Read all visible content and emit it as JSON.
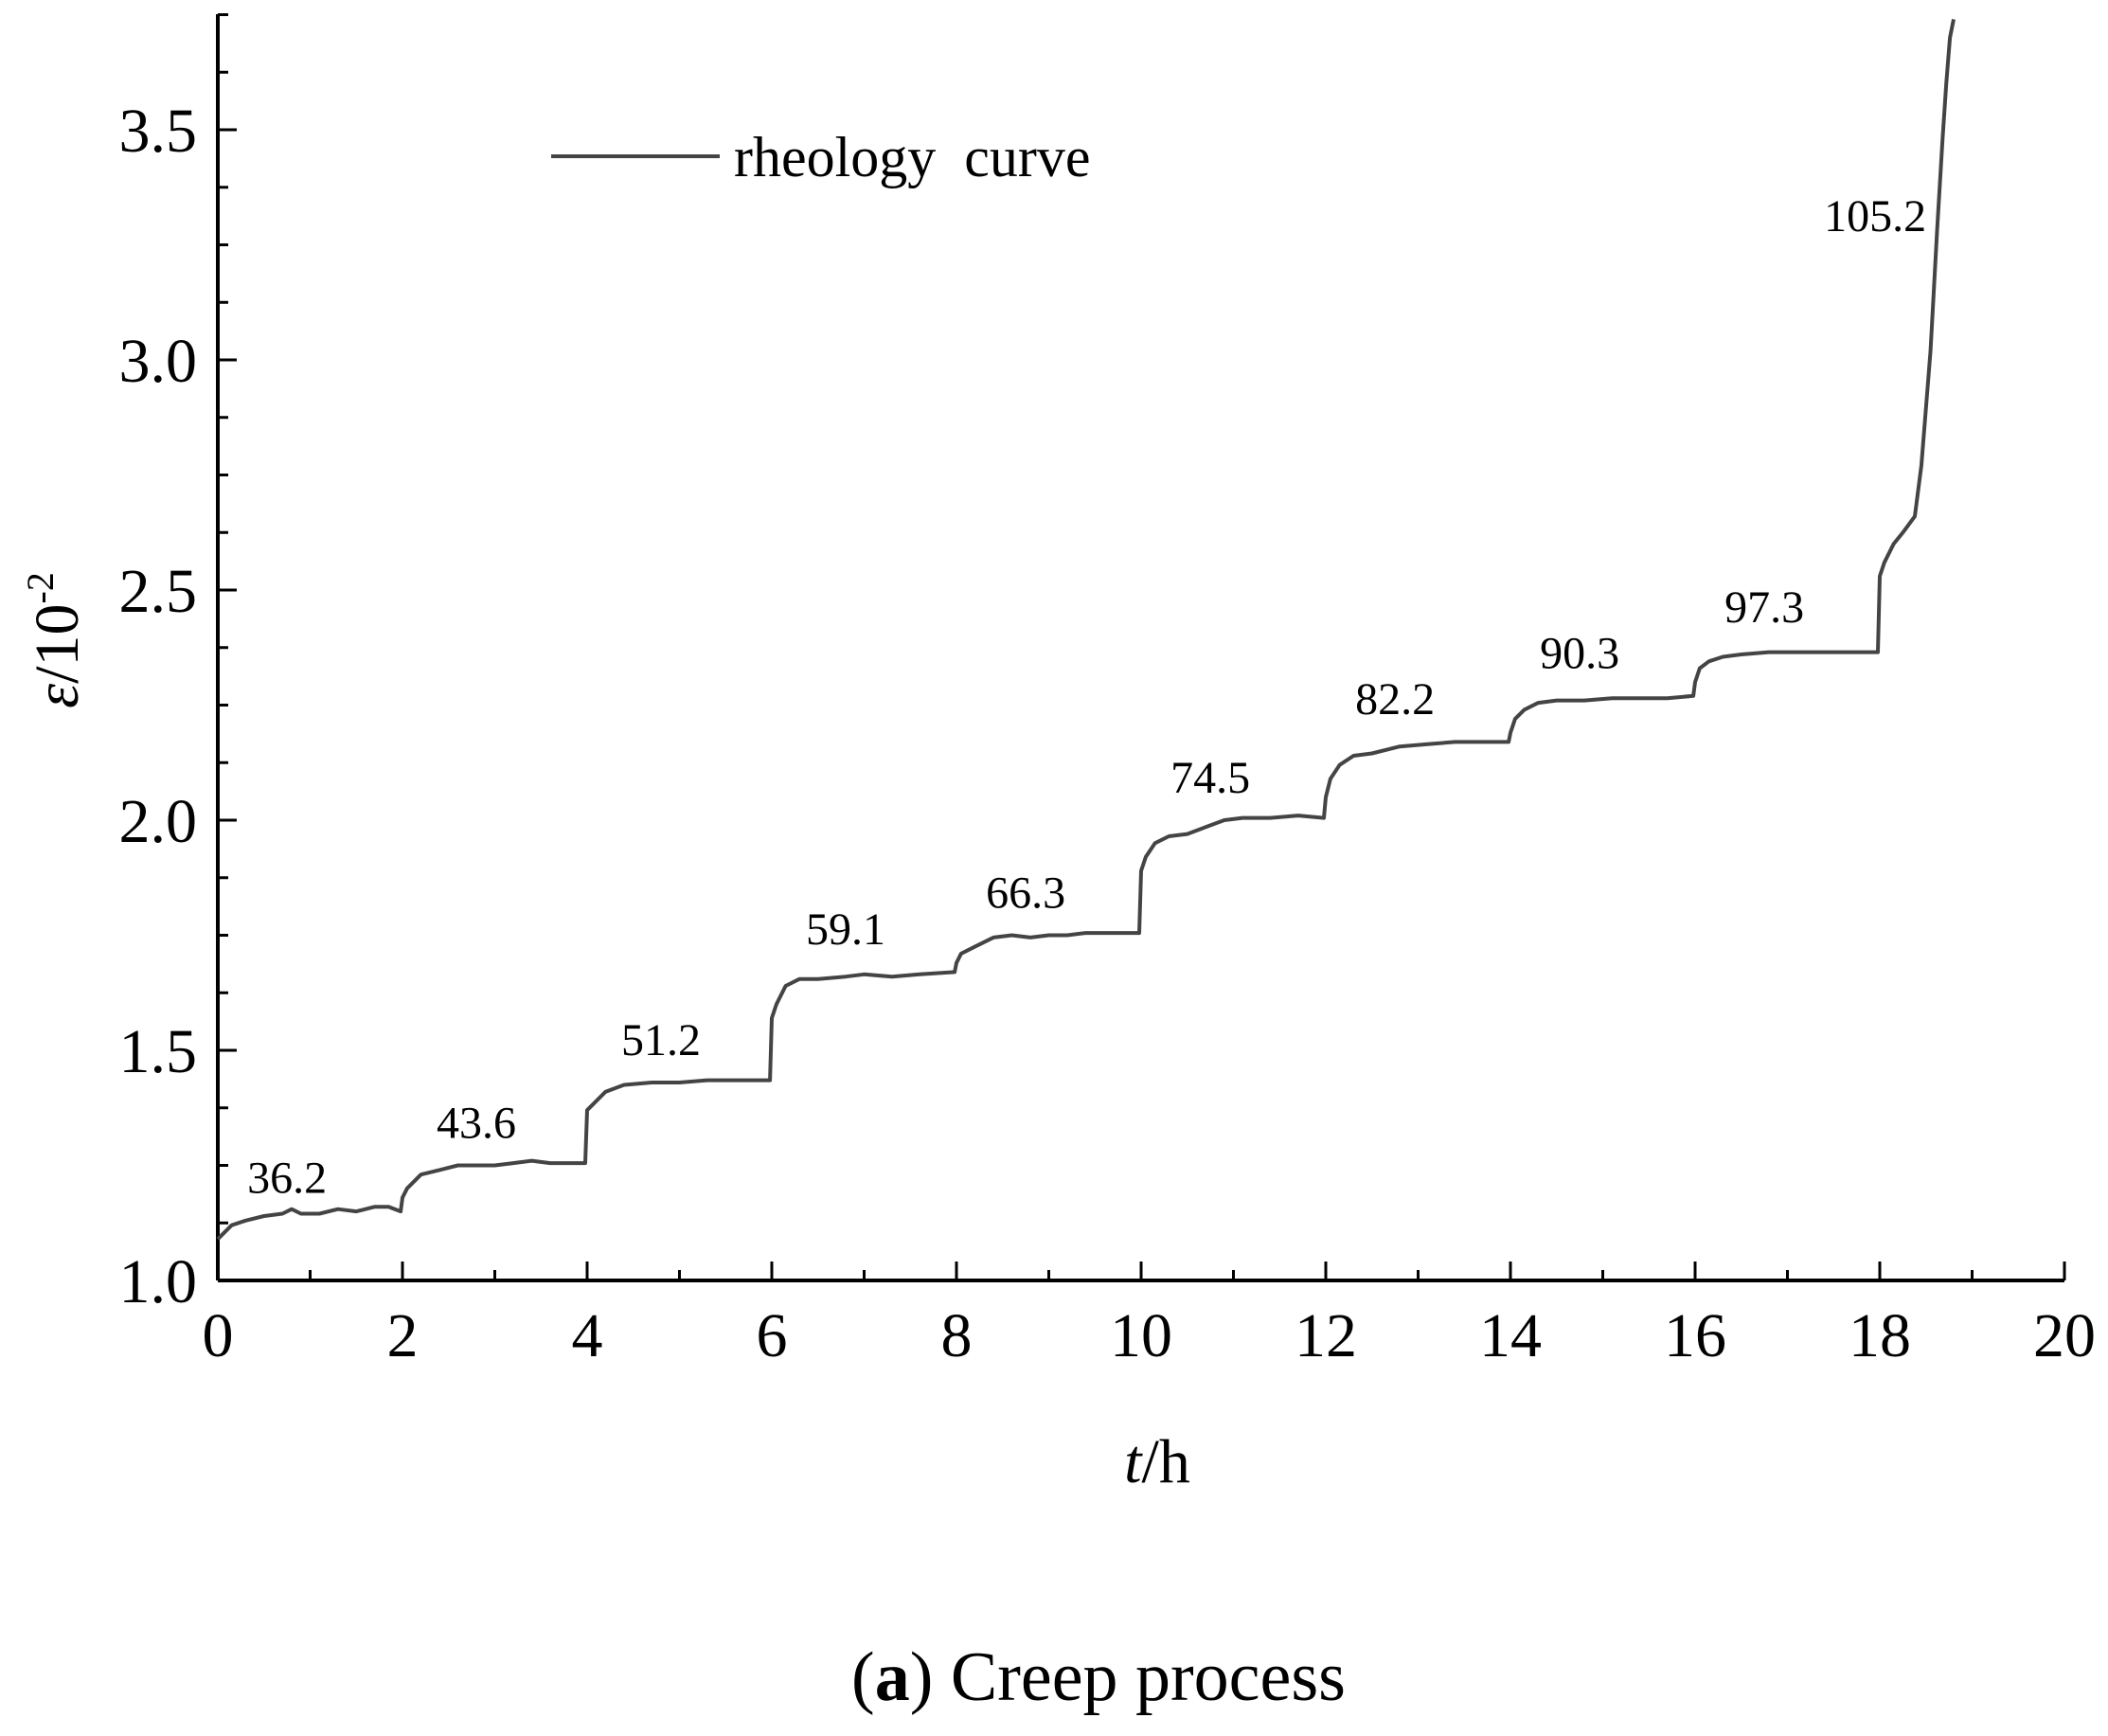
{
  "chart_data": {
    "type": "line",
    "title": "",
    "xlabel": {
      "italic": "t",
      "rest": "/h"
    },
    "ylabel": {
      "italic": "ε",
      "rest": "/10",
      "sup": "-2"
    },
    "xlim": [
      0,
      20
    ],
    "ylim": [
      1.0,
      3.75
    ],
    "xticks": [
      0,
      2,
      4,
      6,
      8,
      10,
      12,
      14,
      16,
      18,
      20
    ],
    "xtick_labels": [
      "0",
      "2",
      "4",
      "6",
      "8",
      "10",
      "12",
      "14",
      "16",
      "18",
      "20"
    ],
    "yticks": [
      1.0,
      1.5,
      2.0,
      2.5,
      3.0,
      3.5
    ],
    "ytick_labels": [
      "1.0",
      "1.5",
      "2.0",
      "2.5",
      "3.0",
      "3.5"
    ],
    "grid": false,
    "legend_position": "top-left",
    "series": [
      {
        "name": "rheology  curve",
        "color": "#444444",
        "x": [
          0,
          0.05,
          0.15,
          0.3,
          0.5,
          0.7,
          0.8,
          0.9,
          1.1,
          1.3,
          1.5,
          1.7,
          1.85,
          1.98,
          2.0,
          2.05,
          2.2,
          2.4,
          2.6,
          3.0,
          3.2,
          3.4,
          3.6,
          3.8,
          3.98,
          4.0,
          4.05,
          4.2,
          4.4,
          4.7,
          5.0,
          5.3,
          5.6,
          5.98,
          6.0,
          6.05,
          6.15,
          6.3,
          6.5,
          6.8,
          7.0,
          7.3,
          7.6,
          7.98,
          8.0,
          8.05,
          8.2,
          8.4,
          8.6,
          8.8,
          9.0,
          9.2,
          9.4,
          9.6,
          9.98,
          10.0,
          10.05,
          10.15,
          10.3,
          10.5,
          10.7,
          10.9,
          11.1,
          11.4,
          11.7,
          11.98,
          12.0,
          12.05,
          12.15,
          12.3,
          12.5,
          12.8,
          13.1,
          13.4,
          13.7,
          13.98,
          14.0,
          14.05,
          14.15,
          14.3,
          14.5,
          14.8,
          15.1,
          15.4,
          15.7,
          15.98,
          16.0,
          16.05,
          16.15,
          16.3,
          16.5,
          16.8,
          17.1,
          17.4,
          17.7,
          17.98,
          18.0,
          18.05,
          18.15,
          18.25,
          18.38,
          18.45,
          18.55,
          18.62,
          18.68,
          18.72,
          18.76,
          18.8
        ],
        "values": [
          1.09,
          1.1,
          1.12,
          1.13,
          1.14,
          1.145,
          1.155,
          1.145,
          1.145,
          1.155,
          1.15,
          1.16,
          1.16,
          1.15,
          1.18,
          1.2,
          1.23,
          1.24,
          1.25,
          1.25,
          1.255,
          1.26,
          1.255,
          1.255,
          1.255,
          1.37,
          1.38,
          1.41,
          1.425,
          1.43,
          1.43,
          1.435,
          1.435,
          1.435,
          1.57,
          1.6,
          1.64,
          1.655,
          1.655,
          1.66,
          1.665,
          1.66,
          1.665,
          1.67,
          1.69,
          1.71,
          1.725,
          1.745,
          1.75,
          1.745,
          1.75,
          1.75,
          1.755,
          1.755,
          1.755,
          1.89,
          1.92,
          1.95,
          1.965,
          1.97,
          1.985,
          2.0,
          2.005,
          2.005,
          2.01,
          2.005,
          2.05,
          2.09,
          2.12,
          2.14,
          2.145,
          2.16,
          2.165,
          2.17,
          2.17,
          2.17,
          2.19,
          2.22,
          2.24,
          2.255,
          2.26,
          2.26,
          2.265,
          2.265,
          2.265,
          2.27,
          2.3,
          2.33,
          2.345,
          2.355,
          2.36,
          2.365,
          2.365,
          2.365,
          2.365,
          2.365,
          2.53,
          2.56,
          2.6,
          2.625,
          2.66,
          2.77,
          3.02,
          3.28,
          3.48,
          3.6,
          3.7,
          3.74
        ]
      }
    ],
    "annotations": [
      {
        "text": "36.2",
        "x": 0.75,
        "y": 1.19
      },
      {
        "text": "43.6",
        "x": 2.8,
        "y": 1.31
      },
      {
        "text": "51.2",
        "x": 4.8,
        "y": 1.49
      },
      {
        "text": "59.1",
        "x": 6.8,
        "y": 1.73
      },
      {
        "text": "66.3",
        "x": 8.75,
        "y": 1.81
      },
      {
        "text": "74.5",
        "x": 10.75,
        "y": 2.06
      },
      {
        "text": "82.2",
        "x": 12.75,
        "y": 2.23
      },
      {
        "text": "90.3",
        "x": 14.75,
        "y": 2.33
      },
      {
        "text": "97.3",
        "x": 16.75,
        "y": 2.43
      },
      {
        "text": "105.2",
        "x": 17.95,
        "y": 3.28
      }
    ]
  },
  "caption": {
    "bold_part": "a",
    "text": "Creep process"
  }
}
